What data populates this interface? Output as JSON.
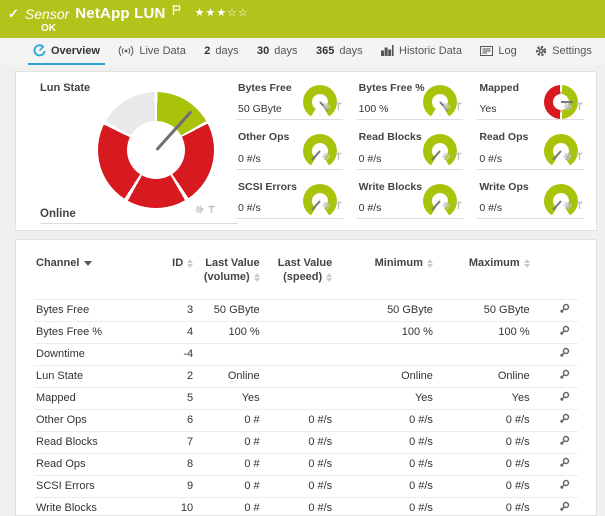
{
  "colors": {
    "header_green": "#b2c31c",
    "gauge_green": "#a9c30b",
    "alert_red": "#d71920",
    "active_tab_blue": "#2aa3d8",
    "segment_gray": "#e9e9e9"
  },
  "header": {
    "kind_label": "Sensor",
    "title": "NetApp LUN",
    "status": "OK",
    "rating": {
      "filled": 3,
      "empty": 2
    }
  },
  "tabs": [
    {
      "id": "overview",
      "strong": "",
      "label": "Overview",
      "icon": "gauge-icon",
      "active": true
    },
    {
      "id": "live-data",
      "strong": "",
      "label": "Live Data",
      "icon": "broadcast-icon",
      "active": false
    },
    {
      "id": "2-days",
      "strong": "2",
      "label": "days",
      "icon": "",
      "active": false
    },
    {
      "id": "30-days",
      "strong": "30",
      "label": "days",
      "icon": "",
      "active": false
    },
    {
      "id": "365-days",
      "strong": "365",
      "label": "days",
      "icon": "",
      "active": false
    },
    {
      "id": "historic-data",
      "strong": "",
      "label": "Historic Data",
      "icon": "bar-chart-icon",
      "active": false
    },
    {
      "id": "log",
      "strong": "",
      "label": "Log",
      "icon": "log-icon",
      "active": false
    },
    {
      "id": "settings",
      "strong": "",
      "label": "Settings",
      "icon": "gear-icon",
      "active": false
    }
  ],
  "overview": {
    "main_gauge": {
      "label": "Lun State",
      "value": "Online",
      "needle_angle_deg": 42,
      "segments": [
        {
          "color": "#a9c30b",
          "from_deg": 0,
          "to_deg": 60
        },
        {
          "color": "#d71920",
          "from_deg": 63,
          "to_deg": 297
        },
        {
          "color": "#e9e9e9",
          "from_deg": 300,
          "to_deg": 360
        }
      ]
    },
    "gauges": [
      {
        "label": "Bytes Free",
        "value": "50 GByte",
        "type": "arc",
        "needle": "max"
      },
      {
        "label": "Bytes Free %",
        "value": "100 %",
        "type": "arc",
        "needle": "max"
      },
      {
        "label": "Mapped",
        "value": "Yes",
        "type": "binary",
        "needle": "right"
      },
      {
        "label": "Other Ops",
        "value": "0 #/s",
        "type": "arc",
        "needle": "min"
      },
      {
        "label": "Read Blocks",
        "value": "0 #/s",
        "type": "arc",
        "needle": "min"
      },
      {
        "label": "Read Ops",
        "value": "0 #/s",
        "type": "arc",
        "needle": "min"
      },
      {
        "label": "SCSI Errors",
        "value": "0 #/s",
        "type": "arc",
        "needle": "min"
      },
      {
        "label": "Write Blocks",
        "value": "0 #/s",
        "type": "arc",
        "needle": "min"
      },
      {
        "label": "Write Ops",
        "value": "0 #/s",
        "type": "arc",
        "needle": "min"
      }
    ]
  },
  "table": {
    "columns": [
      "Channel",
      "ID",
      "Last Value (volume)",
      "Last Value (speed)",
      "Minimum",
      "Maximum"
    ],
    "rows": [
      {
        "channel": "Bytes Free",
        "id": "3",
        "last_volume": "50 GByte",
        "last_speed": "",
        "min": "50 GByte",
        "max": "50 GByte"
      },
      {
        "channel": "Bytes Free %",
        "id": "4",
        "last_volume": "100 %",
        "last_speed": "",
        "min": "100 %",
        "max": "100 %"
      },
      {
        "channel": "Downtime",
        "id": "-4",
        "last_volume": "",
        "last_speed": "",
        "min": "",
        "max": ""
      },
      {
        "channel": "Lun State",
        "id": "2",
        "last_volume": "Online",
        "last_speed": "",
        "min": "Online",
        "max": "Online"
      },
      {
        "channel": "Mapped",
        "id": "5",
        "last_volume": "Yes",
        "last_speed": "",
        "min": "Yes",
        "max": "Yes"
      },
      {
        "channel": "Other Ops",
        "id": "6",
        "last_volume": "0 #",
        "last_speed": "0 #/s",
        "min": "0 #/s",
        "max": "0 #/s"
      },
      {
        "channel": "Read Blocks",
        "id": "7",
        "last_volume": "0 #",
        "last_speed": "0 #/s",
        "min": "0 #/s",
        "max": "0 #/s"
      },
      {
        "channel": "Read Ops",
        "id": "8",
        "last_volume": "0 #",
        "last_speed": "0 #/s",
        "min": "0 #/s",
        "max": "0 #/s"
      },
      {
        "channel": "SCSI Errors",
        "id": "9",
        "last_volume": "0 #",
        "last_speed": "0 #/s",
        "min": "0 #/s",
        "max": "0 #/s"
      },
      {
        "channel": "Write Blocks",
        "id": "10",
        "last_volume": "0 #",
        "last_speed": "0 #/s",
        "min": "0 #/s",
        "max": "0 #/s"
      }
    ]
  }
}
